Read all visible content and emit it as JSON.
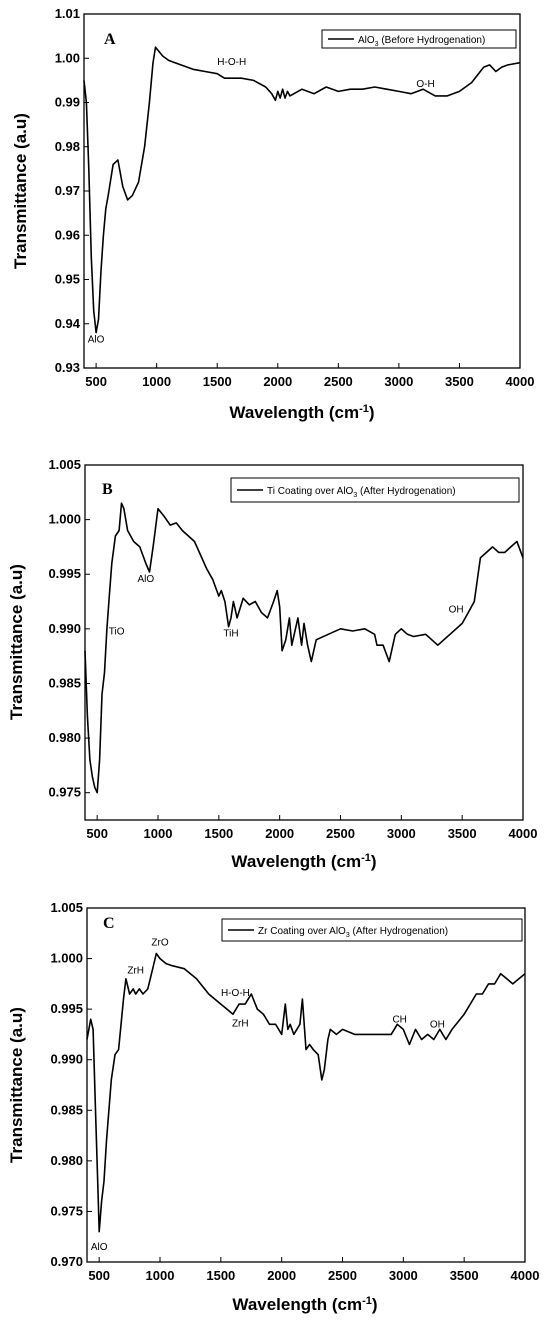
{
  "chart_data": [
    {
      "type": "line",
      "panel_label": "A",
      "xlabel": "Wavelength (cm",
      "xlabel_sup": "-1",
      "xlabel_close": ")",
      "ylabel": "Transmittance (a.u)",
      "xlim": [
        400,
        4000
      ],
      "ylim": [
        0.93,
        1.01
      ],
      "x_ticks": [
        500,
        1000,
        1500,
        2000,
        2500,
        3000,
        3500,
        4000
      ],
      "y_ticks": [
        0.93,
        0.94,
        0.95,
        0.96,
        0.97,
        0.98,
        0.99,
        1.0,
        1.01
      ],
      "y_tick_labels": [
        "0.93",
        "0.94",
        "0.95",
        "0.96",
        "0.97",
        "0.98",
        "0.99",
        "1.00",
        "1.01"
      ],
      "legend": {
        "prefix": "AlO",
        "sub": "3",
        "suffix": " (Before Hydrogenation)",
        "position": "top-right"
      },
      "annotations": [
        {
          "text": "AlO",
          "x": 500,
          "y": 0.9358
        },
        {
          "text": "H-O-H",
          "x": 1620,
          "y": 0.9985
        },
        {
          "text": "O-H",
          "x": 3220,
          "y": 0.9935
        }
      ],
      "series": [
        {
          "x": [
            400,
            420,
            440,
            460,
            480,
            500,
            520,
            540,
            560,
            580,
            600,
            640,
            680,
            720,
            760,
            800,
            850,
            900,
            940,
            970,
            990,
            1050,
            1100,
            1200,
            1300,
            1400,
            1500,
            1560,
            1600,
            1700,
            1800,
            1900,
            1950,
            1980,
            2000,
            2020,
            2040,
            2060,
            2080,
            2100,
            2200,
            2300,
            2400,
            2500,
            2600,
            2700,
            2800,
            2900,
            3000,
            3100,
            3200,
            3300,
            3400,
            3500,
            3600,
            3700,
            3750,
            3800,
            3850,
            3900,
            4000
          ],
          "y": [
            0.995,
            0.99,
            0.975,
            0.955,
            0.943,
            0.938,
            0.941,
            0.952,
            0.96,
            0.966,
            0.969,
            0.976,
            0.977,
            0.971,
            0.968,
            0.969,
            0.972,
            0.98,
            0.99,
            0.999,
            1.0025,
            1.0005,
            0.9995,
            0.9985,
            0.9975,
            0.997,
            0.9965,
            0.9955,
            0.9955,
            0.9955,
            0.995,
            0.9935,
            0.992,
            0.9905,
            0.9925,
            0.991,
            0.993,
            0.991,
            0.9925,
            0.9915,
            0.993,
            0.992,
            0.9935,
            0.9925,
            0.993,
            0.993,
            0.9935,
            0.993,
            0.9925,
            0.992,
            0.993,
            0.9915,
            0.9915,
            0.9925,
            0.9945,
            0.998,
            0.9985,
            0.997,
            0.998,
            0.9985,
            0.999
          ]
        }
      ]
    },
    {
      "type": "line",
      "panel_label": "B",
      "xlabel": "Wavelength (cm",
      "xlabel_sup": "-1",
      "xlabel_close": ")",
      "ylabel": "Transmittance (a.u)",
      "xlim": [
        400,
        4000
      ],
      "ylim": [
        0.9725,
        1.005
      ],
      "x_ticks": [
        500,
        1000,
        1500,
        2000,
        2500,
        3000,
        3500,
        4000
      ],
      "y_ticks": [
        0.975,
        0.98,
        0.985,
        0.99,
        0.995,
        1.0,
        1.005
      ],
      "y_tick_labels": [
        "0.975",
        "0.980",
        "0.985",
        "0.990",
        "0.995",
        "1.000",
        "1.005"
      ],
      "legend": {
        "prefix": "Ti Coating over AlO",
        "sub": "3",
        "suffix": " (After Hydrogenation)",
        "position": "top-right"
      },
      "annotations": [
        {
          "text": "TiO",
          "x": 660,
          "y": 0.9895
        },
        {
          "text": "AlO",
          "x": 900,
          "y": 0.9943
        },
        {
          "text": "TiH",
          "x": 1600,
          "y": 0.9893
        },
        {
          "text": "OH",
          "x": 3450,
          "y": 0.9915
        }
      ],
      "series": [
        {
          "x": [
            400,
            420,
            440,
            460,
            480,
            500,
            520,
            540,
            560,
            580,
            600,
            620,
            650,
            680,
            700,
            720,
            750,
            800,
            850,
            900,
            930,
            960,
            1000,
            1050,
            1100,
            1150,
            1200,
            1300,
            1400,
            1450,
            1500,
            1520,
            1550,
            1580,
            1600,
            1620,
            1650,
            1700,
            1750,
            1800,
            1850,
            1900,
            1950,
            1980,
            2000,
            2020,
            2050,
            2080,
            2100,
            2150,
            2180,
            2200,
            2230,
            2260,
            2300,
            2400,
            2500,
            2600,
            2700,
            2780,
            2800,
            2850,
            2900,
            2950,
            3000,
            3050,
            3100,
            3200,
            3250,
            3300,
            3400,
            3500,
            3550,
            3600,
            3650,
            3700,
            3750,
            3800,
            3850,
            3900,
            3950,
            4000
          ],
          "y": [
            0.988,
            0.982,
            0.978,
            0.9765,
            0.9755,
            0.975,
            0.978,
            0.984,
            0.986,
            0.99,
            0.993,
            0.996,
            0.9985,
            0.999,
            1.0015,
            1.001,
            0.999,
            0.998,
            0.9975,
            0.996,
            0.9952,
            0.9975,
            1.001,
            1.0003,
            0.9995,
            0.9997,
            0.999,
            0.998,
            0.9955,
            0.9945,
            0.993,
            0.9935,
            0.9925,
            0.9902,
            0.991,
            0.9925,
            0.991,
            0.9928,
            0.9922,
            0.9925,
            0.9915,
            0.991,
            0.9925,
            0.9935,
            0.992,
            0.988,
            0.989,
            0.991,
            0.9885,
            0.991,
            0.9885,
            0.9905,
            0.9885,
            0.987,
            0.989,
            0.9895,
            0.99,
            0.9898,
            0.99,
            0.9895,
            0.9885,
            0.9885,
            0.987,
            0.9895,
            0.99,
            0.9895,
            0.9893,
            0.9895,
            0.989,
            0.9885,
            0.9895,
            0.9905,
            0.9915,
            0.9925,
            0.9965,
            0.997,
            0.9975,
            0.997,
            0.997,
            0.9975,
            0.998,
            0.9965
          ]
        }
      ]
    },
    {
      "type": "line",
      "panel_label": "C",
      "xlabel": "Wavelength (cm",
      "xlabel_sup": "-1",
      "xlabel_close": ")",
      "ylabel": "Transmittance (a.u)",
      "xlim": [
        400,
        4000
      ],
      "ylim": [
        0.97,
        1.005
      ],
      "x_ticks": [
        500,
        1000,
        1500,
        2000,
        2500,
        3000,
        3500,
        4000
      ],
      "y_ticks": [
        0.97,
        0.975,
        0.98,
        0.985,
        0.99,
        0.995,
        1.0,
        1.005
      ],
      "y_tick_labels": [
        "0.970",
        "0.975",
        "0.980",
        "0.985",
        "0.990",
        "0.995",
        "1.000",
        "1.005"
      ],
      "legend": {
        "prefix": "Zr Coating over AlO",
        "sub": "3",
        "suffix": " (After Hydrogenation)",
        "position": "top-right"
      },
      "annotations": [
        {
          "text": "ZrH",
          "x": 800,
          "y": 0.9985
        },
        {
          "text": "ZrO",
          "x": 1000,
          "y": 1.0013
        },
        {
          "text": "H-O-H",
          "x": 1620,
          "y": 0.9963
        },
        {
          "text": "ZrH",
          "x": 1660,
          "y": 0.9933
        },
        {
          "text": "CH",
          "x": 2970,
          "y": 0.9937
        },
        {
          "text": "OH",
          "x": 3280,
          "y": 0.9932
        },
        {
          "text": "AlO",
          "x": 500,
          "y": 0.9712
        }
      ],
      "series": [
        {
          "x": [
            400,
            430,
            450,
            470,
            490,
            500,
            520,
            540,
            560,
            600,
            630,
            660,
            700,
            720,
            750,
            780,
            800,
            830,
            860,
            900,
            940,
            970,
            1000,
            1050,
            1100,
            1200,
            1300,
            1400,
            1500,
            1550,
            1600,
            1650,
            1700,
            1750,
            1800,
            1850,
            1900,
            1950,
            2000,
            2030,
            2050,
            2070,
            2100,
            2150,
            2170,
            2200,
            2230,
            2260,
            2300,
            2330,
            2350,
            2380,
            2400,
            2450,
            2500,
            2600,
            2700,
            2800,
            2900,
            2950,
            3000,
            3050,
            3100,
            3150,
            3200,
            3250,
            3300,
            3350,
            3400,
            3500,
            3550,
            3600,
            3650,
            3700,
            3750,
            3800,
            3850,
            3900,
            3950,
            4000
          ],
          "y": [
            0.992,
            0.994,
            0.993,
            0.985,
            0.977,
            0.973,
            0.976,
            0.978,
            0.982,
            0.988,
            0.9905,
            0.991,
            0.996,
            0.998,
            0.9965,
            0.997,
            0.9965,
            0.997,
            0.9965,
            0.997,
            0.999,
            1.0005,
            1.0,
            0.9995,
            0.9993,
            0.999,
            0.998,
            0.9965,
            0.9955,
            0.995,
            0.9945,
            0.9955,
            0.9955,
            0.9965,
            0.995,
            0.9945,
            0.9935,
            0.9935,
            0.9925,
            0.9955,
            0.993,
            0.9935,
            0.9925,
            0.9935,
            0.996,
            0.991,
            0.9915,
            0.991,
            0.9905,
            0.988,
            0.989,
            0.992,
            0.993,
            0.9925,
            0.993,
            0.9925,
            0.9925,
            0.9925,
            0.9925,
            0.9935,
            0.993,
            0.9915,
            0.993,
            0.992,
            0.9925,
            0.992,
            0.993,
            0.992,
            0.993,
            0.9945,
            0.9955,
            0.9965,
            0.9965,
            0.9975,
            0.9975,
            0.9985,
            0.998,
            0.9975,
            0.998,
            0.9985
          ]
        }
      ]
    }
  ]
}
